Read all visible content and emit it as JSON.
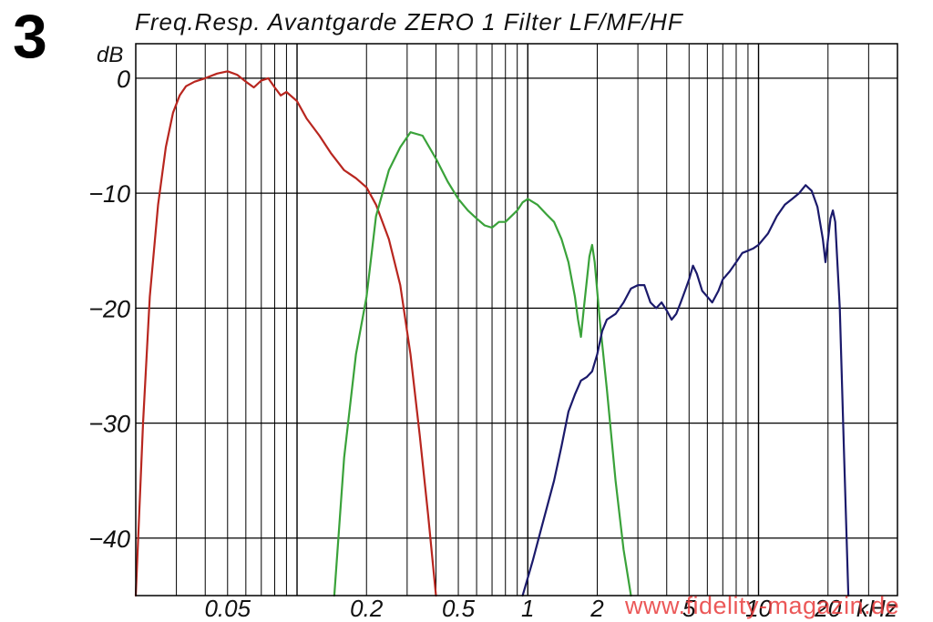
{
  "figure_number": "3",
  "watermark": "www.fidelity-magazin.de",
  "chart_data": {
    "type": "line",
    "title": "Freq.Resp. Avantgarde ZERO 1 Filter LF/MF/HF",
    "ylabel": "dB",
    "xlabel": "kHz",
    "x_scale": "log",
    "xlim": [
      0.02,
      40
    ],
    "ylim": [
      -45,
      3
    ],
    "grid": true,
    "y_ticks": [
      {
        "value": 0,
        "label": "0"
      },
      {
        "value": -10,
        "label": "−10"
      },
      {
        "value": -20,
        "label": "−20"
      },
      {
        "value": -30,
        "label": "−30"
      },
      {
        "value": -40,
        "label": "−40"
      }
    ],
    "x_ticks": [
      {
        "value": 0.05,
        "label": "0.05"
      },
      {
        "value": 0.2,
        "label": "0.2"
      },
      {
        "value": 0.5,
        "label": "0.5"
      },
      {
        "value": 1,
        "label": "1"
      },
      {
        "value": 2,
        "label": "2"
      },
      {
        "value": 5,
        "label": "5"
      },
      {
        "value": 10,
        "label": "10"
      },
      {
        "value": 20,
        "label": "20"
      }
    ],
    "series": [
      {
        "color": "#b8261f",
        "points": [
          [
            0.02,
            -45
          ],
          [
            0.0215,
            -30
          ],
          [
            0.023,
            -19
          ],
          [
            0.025,
            -11
          ],
          [
            0.027,
            -6
          ],
          [
            0.029,
            -3
          ],
          [
            0.031,
            -1.5
          ],
          [
            0.033,
            -0.7
          ],
          [
            0.036,
            -0.3
          ],
          [
            0.04,
            0
          ],
          [
            0.045,
            0.4
          ],
          [
            0.05,
            0.6
          ],
          [
            0.055,
            0.3
          ],
          [
            0.06,
            -0.3
          ],
          [
            0.065,
            -0.8
          ],
          [
            0.07,
            -0.2
          ],
          [
            0.075,
            0
          ],
          [
            0.08,
            -0.8
          ],
          [
            0.085,
            -1.5
          ],
          [
            0.09,
            -1.2
          ],
          [
            0.1,
            -2
          ],
          [
            0.11,
            -3.5
          ],
          [
            0.125,
            -5
          ],
          [
            0.14,
            -6.5
          ],
          [
            0.16,
            -8
          ],
          [
            0.18,
            -8.7
          ],
          [
            0.2,
            -9.5
          ],
          [
            0.22,
            -11
          ],
          [
            0.25,
            -14
          ],
          [
            0.28,
            -18
          ],
          [
            0.31,
            -24
          ],
          [
            0.34,
            -31
          ],
          [
            0.37,
            -38
          ],
          [
            0.4,
            -45
          ]
        ]
      },
      {
        "color": "#3aa23a",
        "points": [
          [
            0.145,
            -45
          ],
          [
            0.16,
            -33
          ],
          [
            0.18,
            -24
          ],
          [
            0.2,
            -19
          ],
          [
            0.22,
            -12
          ],
          [
            0.25,
            -8
          ],
          [
            0.28,
            -6
          ],
          [
            0.31,
            -4.7
          ],
          [
            0.35,
            -5
          ],
          [
            0.4,
            -7
          ],
          [
            0.45,
            -9
          ],
          [
            0.5,
            -10.5
          ],
          [
            0.55,
            -11.5
          ],
          [
            0.6,
            -12.2
          ],
          [
            0.65,
            -12.8
          ],
          [
            0.7,
            -13
          ],
          [
            0.75,
            -12.5
          ],
          [
            0.8,
            -12.5
          ],
          [
            0.9,
            -11.5
          ],
          [
            0.95,
            -10.8
          ],
          [
            1,
            -10.5
          ],
          [
            1.1,
            -11
          ],
          [
            1.2,
            -11.8
          ],
          [
            1.3,
            -12.5
          ],
          [
            1.4,
            -14
          ],
          [
            1.5,
            -16
          ],
          [
            1.6,
            -19
          ],
          [
            1.65,
            -21
          ],
          [
            1.7,
            -22.5
          ],
          [
            1.75,
            -20
          ],
          [
            1.85,
            -15.5
          ],
          [
            1.9,
            -14.5
          ],
          [
            1.95,
            -16
          ],
          [
            2.05,
            -21
          ],
          [
            2.2,
            -27
          ],
          [
            2.4,
            -35
          ],
          [
            2.6,
            -41
          ],
          [
            2.8,
            -45
          ]
        ]
      },
      {
        "color": "#1b1a6b",
        "points": [
          [
            0.95,
            -45
          ],
          [
            1.05,
            -42
          ],
          [
            1.15,
            -39
          ],
          [
            1.3,
            -35
          ],
          [
            1.4,
            -32
          ],
          [
            1.5,
            -29
          ],
          [
            1.6,
            -27.5
          ],
          [
            1.7,
            -26.3
          ],
          [
            1.8,
            -26
          ],
          [
            1.9,
            -25.5
          ],
          [
            2,
            -24
          ],
          [
            2.1,
            -22
          ],
          [
            2.2,
            -21
          ],
          [
            2.4,
            -20.5
          ],
          [
            2.6,
            -19.5
          ],
          [
            2.8,
            -18.3
          ],
          [
            3,
            -18
          ],
          [
            3.2,
            -18
          ],
          [
            3.4,
            -19.5
          ],
          [
            3.6,
            -20
          ],
          [
            3.8,
            -19.5
          ],
          [
            4,
            -20.2
          ],
          [
            4.2,
            -21
          ],
          [
            4.4,
            -20.5
          ],
          [
            4.6,
            -19.5
          ],
          [
            4.8,
            -18.5
          ],
          [
            5,
            -17.5
          ],
          [
            5.2,
            -16.3
          ],
          [
            5.4,
            -17
          ],
          [
            5.7,
            -18.5
          ],
          [
            6,
            -19
          ],
          [
            6.3,
            -19.5
          ],
          [
            6.7,
            -18.5
          ],
          [
            7,
            -17.5
          ],
          [
            7.5,
            -16.8
          ],
          [
            8,
            -16
          ],
          [
            8.5,
            -15.2
          ],
          [
            9,
            -15
          ],
          [
            9.5,
            -14.8
          ],
          [
            10,
            -14.5
          ],
          [
            11,
            -13.5
          ],
          [
            12,
            -12
          ],
          [
            13,
            -11
          ],
          [
            14,
            -10.5
          ],
          [
            15,
            -10
          ],
          [
            16,
            -9.3
          ],
          [
            17,
            -9.8
          ],
          [
            18,
            -11.2
          ],
          [
            19,
            -14
          ],
          [
            19.5,
            -16
          ],
          [
            20,
            -14
          ],
          [
            20.5,
            -12.2
          ],
          [
            21,
            -11.5
          ],
          [
            21.5,
            -12.5
          ],
          [
            22.5,
            -20
          ],
          [
            23.5,
            -33
          ],
          [
            24.5,
            -45
          ]
        ]
      }
    ]
  }
}
